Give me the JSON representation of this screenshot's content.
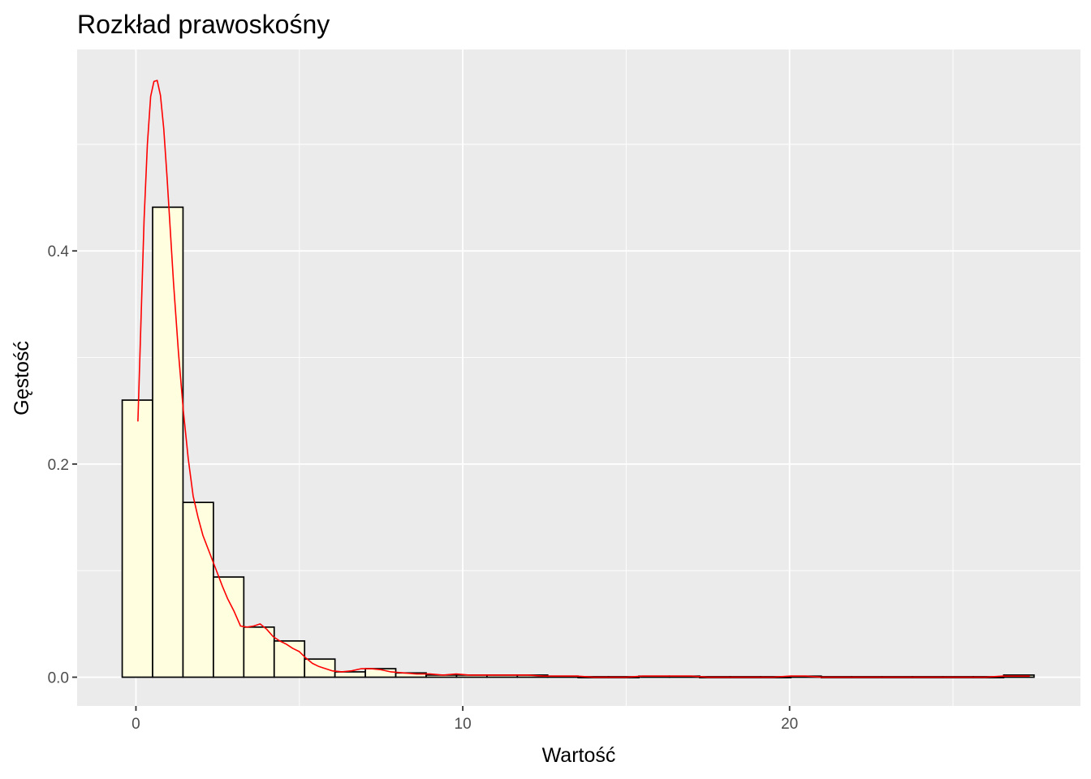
{
  "chart_data": {
    "type": "bar",
    "subtype": "histogram-with-density",
    "title": "Rozkład prawoskośny",
    "xlabel": "Wartość",
    "ylabel": "Gęstość",
    "xlim": [
      -1.8,
      28.9
    ],
    "ylim": [
      -0.027,
      0.589
    ],
    "x_ticks": [
      0,
      10,
      20
    ],
    "x_tick_labels": [
      "0",
      "10",
      "20"
    ],
    "y_ticks": [
      0.0,
      0.2,
      0.4
    ],
    "y_tick_labels": [
      "0.0",
      "0.2",
      "0.4"
    ],
    "grid": true,
    "colors": {
      "panel_background": "#ebebeb",
      "grid": "#ffffff",
      "bar_fill": "#ffffe0",
      "bar_outline": "#000000",
      "density_line": "#ff0000",
      "tick_label": "#4d4d4d"
    },
    "bin_width": 0.93,
    "bins": [
      {
        "x_start": -0.42,
        "x_end": 0.51,
        "density": 0.26
      },
      {
        "x_start": 0.51,
        "x_end": 1.44,
        "density": 0.441
      },
      {
        "x_start": 1.44,
        "x_end": 2.37,
        "density": 0.164
      },
      {
        "x_start": 2.37,
        "x_end": 3.3,
        "density": 0.094
      },
      {
        "x_start": 3.3,
        "x_end": 4.23,
        "density": 0.047
      },
      {
        "x_start": 4.23,
        "x_end": 5.16,
        "density": 0.034
      },
      {
        "x_start": 5.16,
        "x_end": 6.09,
        "density": 0.017
      },
      {
        "x_start": 6.09,
        "x_end": 7.02,
        "density": 0.005
      },
      {
        "x_start": 7.02,
        "x_end": 7.95,
        "density": 0.008
      },
      {
        "x_start": 7.95,
        "x_end": 8.88,
        "density": 0.004
      },
      {
        "x_start": 8.88,
        "x_end": 9.81,
        "density": 0.002
      },
      {
        "x_start": 9.81,
        "x_end": 10.74,
        "density": 0.002
      },
      {
        "x_start": 10.74,
        "x_end": 11.67,
        "density": 0.002
      },
      {
        "x_start": 11.67,
        "x_end": 12.6,
        "density": 0.002
      },
      {
        "x_start": 12.6,
        "x_end": 13.53,
        "density": 0.001
      },
      {
        "x_start": 13.53,
        "x_end": 14.46,
        "density": 0.0
      },
      {
        "x_start": 14.46,
        "x_end": 15.39,
        "density": 0.0
      },
      {
        "x_start": 15.39,
        "x_end": 16.32,
        "density": 0.001
      },
      {
        "x_start": 16.32,
        "x_end": 17.25,
        "density": 0.001
      },
      {
        "x_start": 17.25,
        "x_end": 18.18,
        "density": 0.0
      },
      {
        "x_start": 18.18,
        "x_end": 19.11,
        "density": 0.0
      },
      {
        "x_start": 19.11,
        "x_end": 20.04,
        "density": 0.0
      },
      {
        "x_start": 20.04,
        "x_end": 20.97,
        "density": 0.001
      },
      {
        "x_start": 20.97,
        "x_end": 21.9,
        "density": 0.0
      },
      {
        "x_start": 21.9,
        "x_end": 22.83,
        "density": 0.0
      },
      {
        "x_start": 22.83,
        "x_end": 23.76,
        "density": 0.0
      },
      {
        "x_start": 23.76,
        "x_end": 24.69,
        "density": 0.0
      },
      {
        "x_start": 24.69,
        "x_end": 25.62,
        "density": 0.0
      },
      {
        "x_start": 25.62,
        "x_end": 26.55,
        "density": 0.0
      },
      {
        "x_start": 26.55,
        "x_end": 27.48,
        "density": 0.002
      }
    ],
    "density_curve": {
      "x": [
        0.06,
        0.15,
        0.25,
        0.35,
        0.45,
        0.55,
        0.65,
        0.75,
        0.85,
        0.95,
        1.05,
        1.15,
        1.3,
        1.45,
        1.6,
        1.75,
        1.9,
        2.05,
        2.2,
        2.35,
        2.5,
        2.65,
        2.8,
        3.0,
        3.2,
        3.4,
        3.6,
        3.8,
        4.0,
        4.2,
        4.4,
        4.6,
        4.8,
        5.0,
        5.2,
        5.4,
        5.6,
        5.8,
        6.0,
        6.3,
        6.6,
        6.9,
        7.2,
        7.5,
        7.8,
        8.2,
        8.6,
        9.0,
        9.4,
        9.8,
        10.2,
        10.6,
        11.0,
        11.5,
        12.0,
        12.5,
        13.0,
        13.5,
        14.0,
        14.5,
        15.0,
        15.5,
        16.0,
        16.5,
        17.0,
        17.5,
        18.5,
        19.5,
        20.0,
        20.5,
        21.0,
        22.0,
        23.0,
        24.0,
        25.0,
        26.0,
        26.5,
        27.0,
        27.35
      ],
      "y": [
        0.24,
        0.33,
        0.43,
        0.5,
        0.545,
        0.559,
        0.56,
        0.546,
        0.515,
        0.47,
        0.42,
        0.37,
        0.305,
        0.25,
        0.205,
        0.17,
        0.15,
        0.133,
        0.121,
        0.109,
        0.097,
        0.085,
        0.074,
        0.062,
        0.048,
        0.047,
        0.048,
        0.05,
        0.045,
        0.038,
        0.034,
        0.031,
        0.027,
        0.024,
        0.018,
        0.013,
        0.01,
        0.008,
        0.006,
        0.005,
        0.006,
        0.008,
        0.008,
        0.007,
        0.005,
        0.004,
        0.003,
        0.003,
        0.002,
        0.003,
        0.002,
        0.002,
        0.002,
        0.002,
        0.002,
        0.001,
        0.001,
        0.001,
        0.0,
        0.0,
        0.0,
        0.001,
        0.001,
        0.001,
        0.001,
        0.0,
        0.0,
        0.0,
        0.001,
        0.001,
        0.0,
        0.0,
        0.0,
        0.0,
        0.0,
        0.0,
        0.001,
        0.001,
        0.001
      ]
    }
  }
}
